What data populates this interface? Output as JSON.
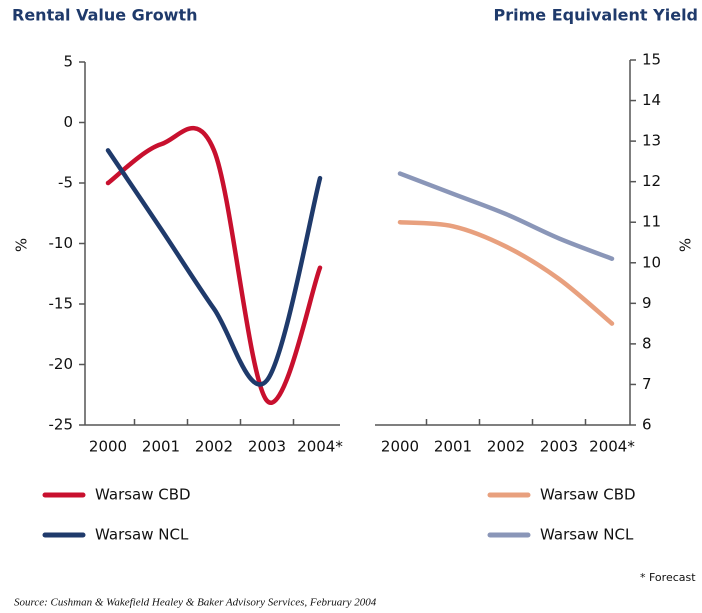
{
  "chart_data": [
    {
      "type": "line",
      "title": "Rental Value Growth",
      "y_label": "%",
      "categories": [
        "2000",
        "2001",
        "2002",
        "2003",
        "2004*"
      ],
      "series": [
        {
          "name": "Warsaw CBD",
          "color": "#c8102e",
          "values": [
            -5,
            -1.8,
            -2.3,
            -23,
            -12
          ]
        },
        {
          "name": "Warsaw NCL",
          "color": "#1f3a6b",
          "values": [
            -2.3,
            -8.8,
            -15.4,
            -21.3,
            -4.6
          ]
        }
      ],
      "ylim": [
        -25,
        5
      ],
      "yticks": [
        5,
        0,
        -5,
        -10,
        -15,
        -20,
        -25
      ]
    },
    {
      "type": "line",
      "title": "Prime Equivalent Yield",
      "y_label": "%",
      "categories": [
        "2000",
        "2001",
        "2002",
        "2003",
        "2004*"
      ],
      "series": [
        {
          "name": "Warsaw CBD",
          "color": "#e8a07e",
          "values": [
            11.0,
            10.9,
            10.4,
            9.6,
            8.5
          ]
        },
        {
          "name": "Warsaw NCL",
          "color": "#8a96b8",
          "values": [
            12.2,
            11.7,
            11.2,
            10.6,
            10.1
          ]
        }
      ],
      "ylim": [
        6,
        15
      ],
      "yticks": [
        15,
        14,
        13,
        12,
        11,
        10,
        9,
        8,
        7,
        6
      ]
    }
  ],
  "source": "Source: Cushman & Wakefield Healey & Baker Advisory Services, February 2004",
  "footnote": "* Forecast"
}
